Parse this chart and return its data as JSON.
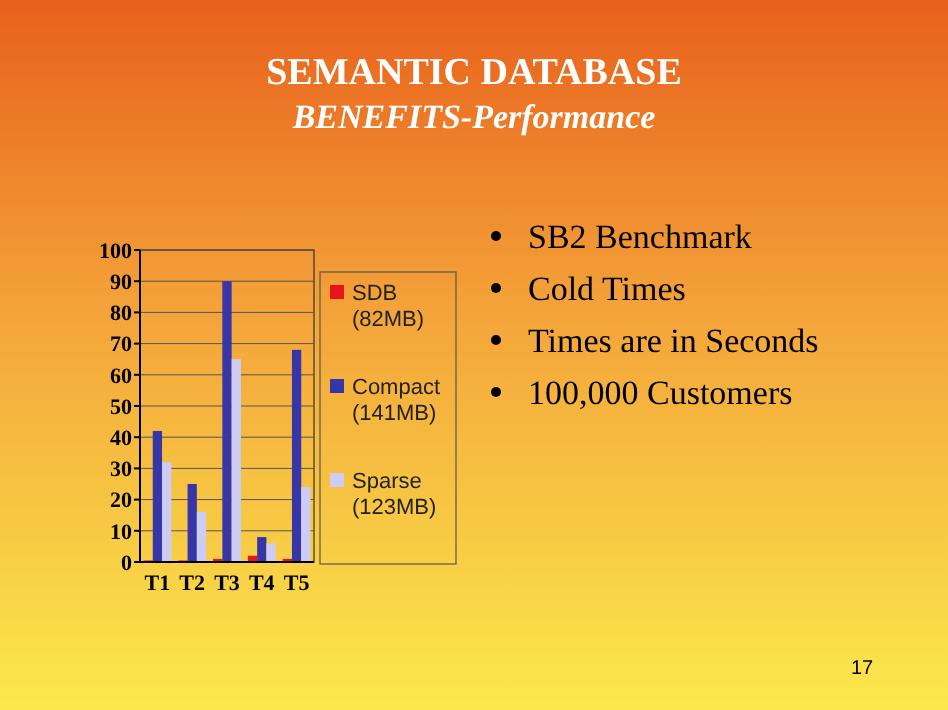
{
  "chart_data": {
    "type": "bar",
    "title": "SEMANTIC DATABASE",
    "subtitle": "BENEFITS-Performance",
    "categories": [
      "T1",
      "T2",
      "T3",
      "T4",
      "T5"
    ],
    "series": [
      {
        "name": "SDB (82MB)",
        "color": "#e8141c",
        "values": [
          0.5,
          0.5,
          1,
          2,
          1
        ]
      },
      {
        "name": "Compact (141MB)",
        "color": "#3636a8",
        "values": [
          42,
          25,
          90,
          8,
          68
        ]
      },
      {
        "name": "Sparse (123MB)",
        "color": "#ccccf4",
        "values": [
          32,
          16,
          65,
          6,
          24
        ]
      }
    ],
    "ylim": [
      0,
      100
    ],
    "yticks": [
      0,
      10,
      20,
      30,
      40,
      50,
      60,
      70,
      80,
      90,
      100
    ],
    "grid": "y",
    "legend": "right",
    "annotations": [
      "SB2 Benchmark",
      "Cold Times",
      "Times are in Seconds",
      "100,000 Customers",
      "17"
    ]
  }
}
